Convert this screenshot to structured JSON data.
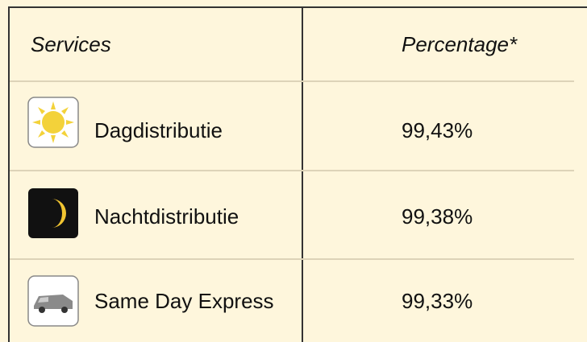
{
  "header": {
    "columns": [
      "Services",
      "Percentage*"
    ]
  },
  "table": {
    "rows": [
      [
        "Dagdistributie",
        "99,43%"
      ],
      [
        "Nachtdistributie",
        "99,38%"
      ],
      [
        "Same Day Express",
        "99,33%"
      ]
    ]
  }
}
